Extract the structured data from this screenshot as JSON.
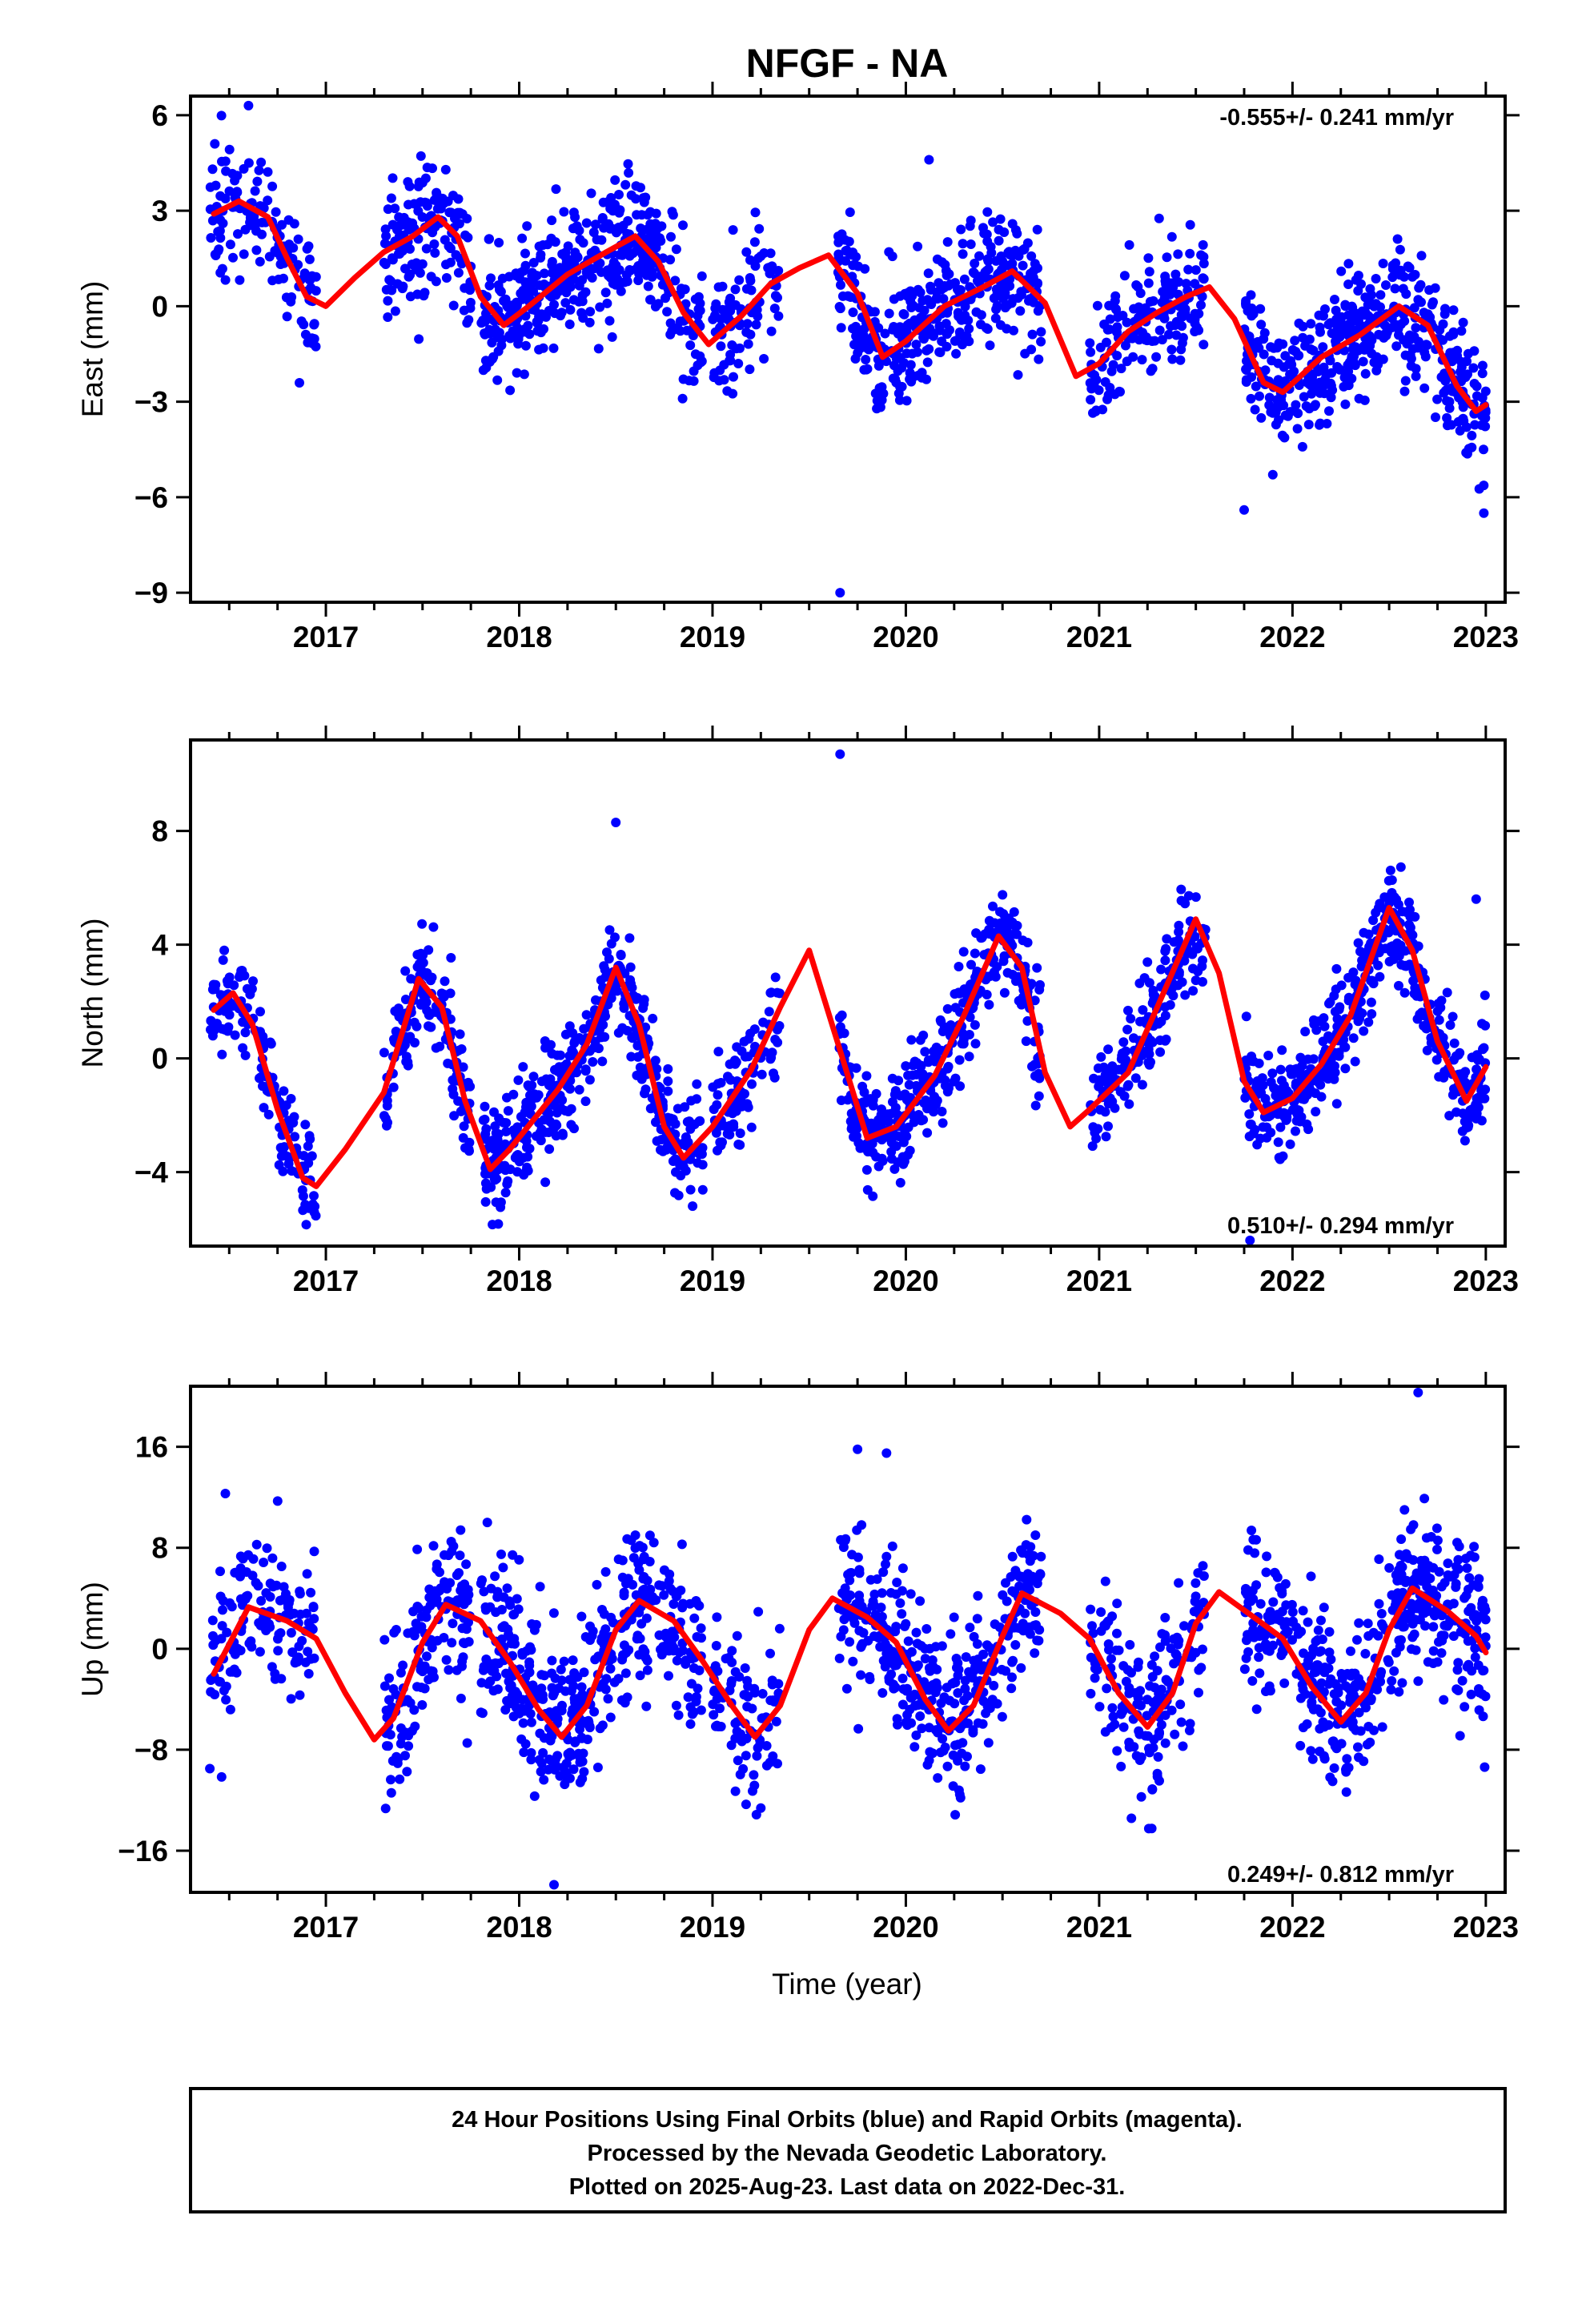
{
  "title": "NFGF - NA",
  "x_axis_label": "Time (year)",
  "footer": {
    "line1": "24 Hour Positions Using Final Orbits (blue) and Rapid Orbits (magenta).",
    "line2": "Processed by the Nevada Geodetic Laboratory.",
    "line3": "Plotted on 2025-Aug-23. Last data on 2022-Dec-31."
  },
  "colors": {
    "points": "#0000ff",
    "fit": "#ff0000",
    "frame": "#000000"
  },
  "chart_data": [
    {
      "type": "scatter",
      "ylabel": "East (mm)",
      "rate": "-0.555+/- 0.241 mm/yr",
      "rate_placement": "top-right",
      "xlim": [
        2016.3,
        2023.1
      ],
      "ylim": [
        -9.3,
        6.6
      ],
      "xticks": [
        2017,
        2018,
        2019,
        2020,
        2021,
        2022,
        2023
      ],
      "yticks": [
        6,
        3,
        0,
        -3,
        -6,
        -9
      ],
      "ytick_labels": [
        "6",
        "3",
        "0",
        "−3",
        "−6",
        "−9"
      ],
      "points_color": "#0000ff",
      "fit_color": "#ff0000",
      "grid": false,
      "fit": [
        [
          2016.42,
          2.9
        ],
        [
          2016.55,
          3.3
        ],
        [
          2016.7,
          2.8
        ],
        [
          2016.8,
          1.5
        ],
        [
          2016.9,
          0.3
        ],
        [
          2017.0,
          0.0
        ],
        [
          2017.15,
          0.9
        ],
        [
          2017.3,
          1.7
        ],
        [
          2017.45,
          2.2
        ],
        [
          2017.58,
          2.8
        ],
        [
          2017.68,
          2.2
        ],
        [
          2017.8,
          0.3
        ],
        [
          2017.92,
          -0.6
        ],
        [
          2018.05,
          0.0
        ],
        [
          2018.25,
          1.0
        ],
        [
          2018.45,
          1.7
        ],
        [
          2018.6,
          2.2
        ],
        [
          2018.72,
          1.4
        ],
        [
          2018.85,
          -0.2
        ],
        [
          2018.98,
          -1.2
        ],
        [
          2019.15,
          -0.3
        ],
        [
          2019.3,
          0.7
        ],
        [
          2019.45,
          1.2
        ],
        [
          2019.6,
          1.6
        ],
        [
          2019.75,
          0.4
        ],
        [
          2019.88,
          -1.6
        ],
        [
          2020.0,
          -1.1
        ],
        [
          2020.2,
          0.0
        ],
        [
          2020.4,
          0.6
        ],
        [
          2020.55,
          1.1
        ],
        [
          2020.72,
          0.1
        ],
        [
          2020.88,
          -2.2
        ],
        [
          2021.0,
          -1.8
        ],
        [
          2021.15,
          -0.8
        ],
        [
          2021.3,
          -0.2
        ],
        [
          2021.45,
          0.3
        ],
        [
          2021.57,
          0.6
        ],
        [
          2021.7,
          -0.4
        ],
        [
          2021.85,
          -2.4
        ],
        [
          2021.95,
          -2.7
        ],
        [
          2022.15,
          -1.6
        ],
        [
          2022.35,
          -0.9
        ],
        [
          2022.55,
          0.0
        ],
        [
          2022.7,
          -0.6
        ],
        [
          2022.85,
          -2.5
        ],
        [
          2022.95,
          -3.3
        ],
        [
          2023.0,
          -3.1
        ]
      ],
      "points": [
        {
          "x_range": [
            2016.4,
            2016.95
          ],
          "n": 140,
          "noise": 0.9
        },
        {
          "x_range": [
            2017.3,
            2017.75
          ],
          "n": 150,
          "noise": 1.0
        },
        {
          "x_range": [
            2017.8,
            2018.95
          ],
          "n": 420,
          "noise": 1.0
        },
        {
          "x_range": [
            2019.0,
            2019.35
          ],
          "n": 90,
          "noise": 1.0
        },
        {
          "x_range": [
            2019.65,
            2020.7
          ],
          "n": 380,
          "noise": 1.0
        },
        {
          "x_range": [
            2020.95,
            2021.55
          ],
          "n": 170,
          "noise": 1.0
        },
        {
          "x_range": [
            2021.75,
            2023.0
          ],
          "n": 460,
          "noise": 1.0
        }
      ],
      "outliers": [
        [
          2016.6,
          6.3
        ],
        [
          2019.66,
          -9.0
        ],
        [
          2020.12,
          4.6
        ],
        [
          2021.75,
          -6.4
        ],
        [
          2022.99,
          -6.5
        ]
      ]
    },
    {
      "type": "scatter",
      "ylabel": "North (mm)",
      "rate": "0.510+/- 0.294 mm/yr",
      "rate_placement": "bottom-right",
      "xlim": [
        2016.3,
        2023.1
      ],
      "ylim": [
        -6.6,
        11.2
      ],
      "xticks": [
        2017,
        2018,
        2019,
        2020,
        2021,
        2022,
        2023
      ],
      "yticks": [
        8,
        4,
        0,
        -4
      ],
      "ytick_labels": [
        "8",
        "4",
        "0",
        "−4"
      ],
      "points_color": "#0000ff",
      "fit_color": "#ff0000",
      "grid": false,
      "fit": [
        [
          2016.42,
          1.7
        ],
        [
          2016.52,
          2.3
        ],
        [
          2016.62,
          1.2
        ],
        [
          2016.75,
          -1.8
        ],
        [
          2016.88,
          -4.2
        ],
        [
          2016.95,
          -4.5
        ],
        [
          2017.1,
          -3.2
        ],
        [
          2017.3,
          -1.2
        ],
        [
          2017.48,
          2.8
        ],
        [
          2017.6,
          1.8
        ],
        [
          2017.72,
          -1.5
        ],
        [
          2017.85,
          -3.9
        ],
        [
          2017.95,
          -3.2
        ],
        [
          2018.2,
          -1.1
        ],
        [
          2018.35,
          0.5
        ],
        [
          2018.5,
          3.2
        ],
        [
          2018.62,
          1.2
        ],
        [
          2018.75,
          -2.4
        ],
        [
          2018.85,
          -3.5
        ],
        [
          2019.0,
          -2.4
        ],
        [
          2019.2,
          -0.4
        ],
        [
          2019.35,
          1.8
        ],
        [
          2019.5,
          3.8
        ],
        [
          2019.65,
          0.5
        ],
        [
          2019.8,
          -2.8
        ],
        [
          2019.95,
          -2.4
        ],
        [
          2020.15,
          -0.6
        ],
        [
          2020.3,
          1.5
        ],
        [
          2020.48,
          4.3
        ],
        [
          2020.6,
          3.2
        ],
        [
          2020.72,
          -0.5
        ],
        [
          2020.85,
          -2.4
        ],
        [
          2020.95,
          -1.8
        ],
        [
          2021.15,
          -0.5
        ],
        [
          2021.3,
          1.8
        ],
        [
          2021.5,
          4.9
        ],
        [
          2021.62,
          3.0
        ],
        [
          2021.75,
          -0.8
        ],
        [
          2021.85,
          -1.9
        ],
        [
          2022.0,
          -1.4
        ],
        [
          2022.15,
          -0.2
        ],
        [
          2022.3,
          1.5
        ],
        [
          2022.5,
          5.3
        ],
        [
          2022.62,
          3.8
        ],
        [
          2022.75,
          0.6
        ],
        [
          2022.9,
          -1.5
        ],
        [
          2023.0,
          -0.3
        ]
      ],
      "points": [
        {
          "x_range": [
            2016.4,
            2016.95
          ],
          "n": 140,
          "noise": 0.9
        },
        {
          "x_range": [
            2017.3,
            2017.75
          ],
          "n": 150,
          "noise": 0.9
        },
        {
          "x_range": [
            2017.8,
            2018.95
          ],
          "n": 420,
          "noise": 0.9
        },
        {
          "x_range": [
            2019.0,
            2019.35
          ],
          "n": 90,
          "noise": 0.9
        },
        {
          "x_range": [
            2019.65,
            2020.7
          ],
          "n": 380,
          "noise": 0.9
        },
        {
          "x_range": [
            2020.95,
            2021.55
          ],
          "n": 170,
          "noise": 0.9
        },
        {
          "x_range": [
            2021.75,
            2023.0
          ],
          "n": 460,
          "noise": 0.9
        }
      ],
      "outliers": [
        [
          2019.66,
          10.7
        ],
        [
          2018.5,
          8.3
        ],
        [
          2021.78,
          -6.4
        ],
        [
          2022.95,
          5.6
        ]
      ]
    },
    {
      "type": "scatter",
      "ylabel": "Up (mm)",
      "rate": "0.249+/- 0.812 mm/yr",
      "rate_placement": "bottom-right",
      "xlim": [
        2016.3,
        2023.1
      ],
      "ylim": [
        -19.3,
        20.8
      ],
      "xticks": [
        2017,
        2018,
        2019,
        2020,
        2021,
        2022,
        2023
      ],
      "yticks": [
        16,
        8,
        0,
        -8,
        -16
      ],
      "ytick_labels": [
        "16",
        "8",
        "0",
        "−8",
        "−16"
      ],
      "points_color": "#0000ff",
      "fit_color": "#ff0000",
      "grid": false,
      "fit": [
        [
          2016.42,
          -2.0
        ],
        [
          2016.6,
          3.3
        ],
        [
          2016.8,
          2.2
        ],
        [
          2016.95,
          0.8
        ],
        [
          2017.1,
          -3.5
        ],
        [
          2017.25,
          -7.2
        ],
        [
          2017.35,
          -5.5
        ],
        [
          2017.5,
          0.5
        ],
        [
          2017.62,
          3.5
        ],
        [
          2017.8,
          2.2
        ],
        [
          2017.95,
          -1.0
        ],
        [
          2018.1,
          -4.8
        ],
        [
          2018.22,
          -7.0
        ],
        [
          2018.35,
          -4.5
        ],
        [
          2018.5,
          1.5
        ],
        [
          2018.62,
          3.8
        ],
        [
          2018.8,
          2.2
        ],
        [
          2018.95,
          -1.0
        ],
        [
          2019.1,
          -4.5
        ],
        [
          2019.22,
          -7.0
        ],
        [
          2019.35,
          -4.5
        ],
        [
          2019.5,
          1.5
        ],
        [
          2019.62,
          4.0
        ],
        [
          2019.8,
          2.5
        ],
        [
          2019.95,
          0.5
        ],
        [
          2020.1,
          -4.0
        ],
        [
          2020.22,
          -6.5
        ],
        [
          2020.35,
          -4.5
        ],
        [
          2020.5,
          1.0
        ],
        [
          2020.6,
          4.4
        ],
        [
          2020.8,
          2.8
        ],
        [
          2020.95,
          0.8
        ],
        [
          2021.1,
          -3.5
        ],
        [
          2021.25,
          -6.2
        ],
        [
          2021.38,
          -3.5
        ],
        [
          2021.5,
          2.0
        ],
        [
          2021.62,
          4.5
        ],
        [
          2021.8,
          2.5
        ],
        [
          2021.95,
          0.8
        ],
        [
          2022.1,
          -3.0
        ],
        [
          2022.25,
          -5.8
        ],
        [
          2022.38,
          -3.5
        ],
        [
          2022.5,
          1.5
        ],
        [
          2022.62,
          4.8
        ],
        [
          2022.8,
          3.0
        ],
        [
          2022.95,
          1.0
        ],
        [
          2023.0,
          -0.3
        ]
      ],
      "points": [
        {
          "x_range": [
            2016.4,
            2016.95
          ],
          "n": 140,
          "noise": 3.0
        },
        {
          "x_range": [
            2017.3,
            2017.75
          ],
          "n": 150,
          "noise": 3.2
        },
        {
          "x_range": [
            2017.8,
            2018.95
          ],
          "n": 420,
          "noise": 3.2
        },
        {
          "x_range": [
            2019.0,
            2019.35
          ],
          "n": 90,
          "noise": 3.2
        },
        {
          "x_range": [
            2019.65,
            2020.7
          ],
          "n": 380,
          "noise": 3.2
        },
        {
          "x_range": [
            2020.95,
            2021.55
          ],
          "n": 170,
          "noise": 3.2
        },
        {
          "x_range": [
            2021.75,
            2023.0
          ],
          "n": 460,
          "noise": 3.2
        }
      ],
      "outliers": [
        [
          2022.65,
          20.3
        ],
        [
          2019.75,
          15.8
        ],
        [
          2019.9,
          15.5
        ],
        [
          2018.18,
          -18.7
        ],
        [
          2016.4,
          -9.5
        ],
        [
          2016.48,
          12.3
        ]
      ]
    }
  ]
}
